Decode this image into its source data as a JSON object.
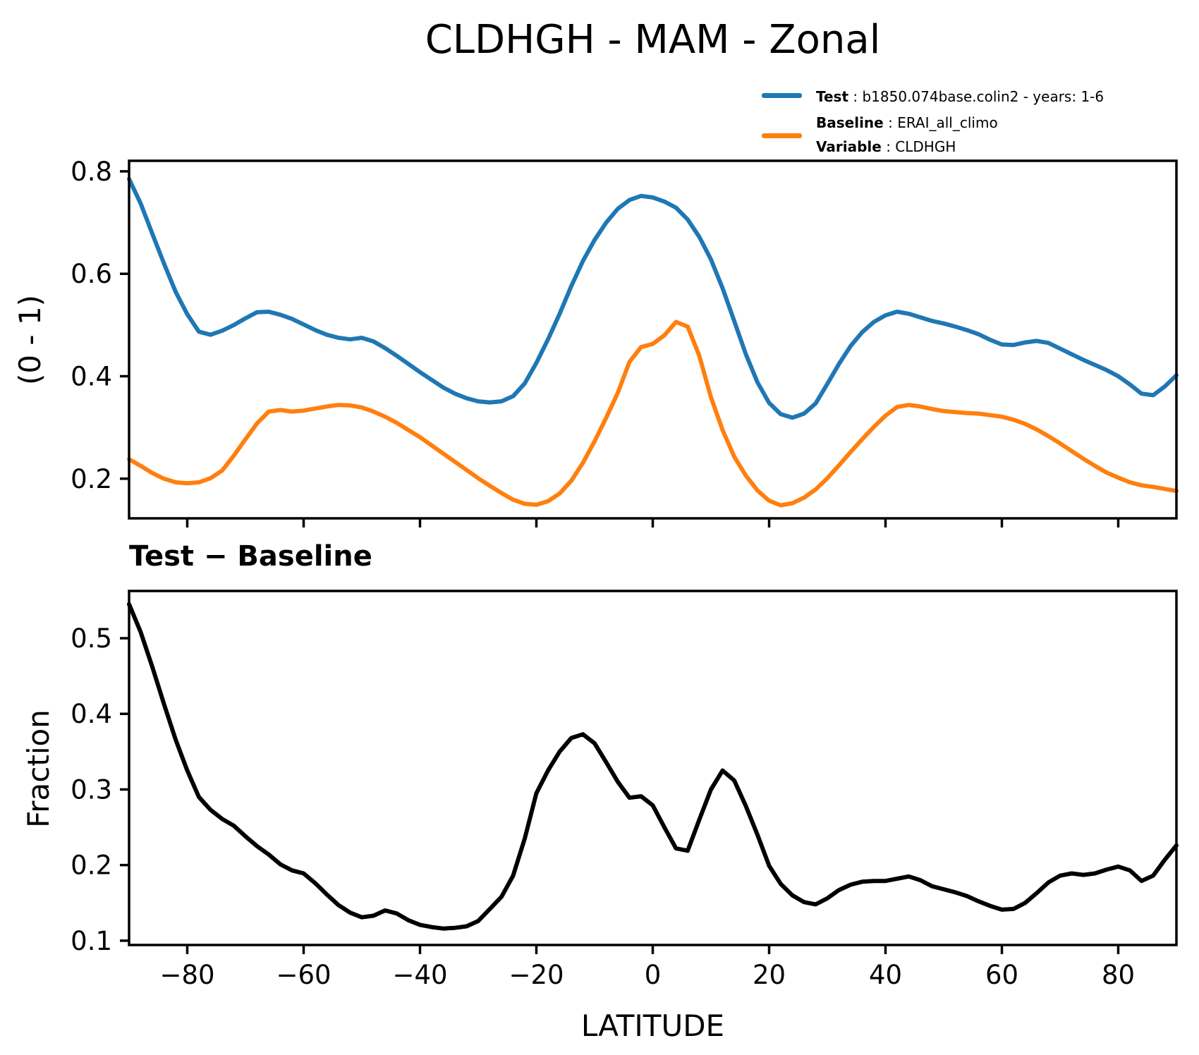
{
  "title": "CLDHGH - MAM - Zonal",
  "subtitle": "Test − Baseline",
  "legend": {
    "test_label": "Test",
    "test_value": " : b1850.074base.colin2 - years: 1-6",
    "baseline_label": "Baseline",
    "baseline_value": " : ERAI_all_climo",
    "variable_label": "Variable",
    "variable_value": " : CLDHGH",
    "test_color": "#1f77b4",
    "baseline_color": "#ff7f0e"
  },
  "chart_data": [
    {
      "type": "line",
      "title": "CLDHGH - MAM - Zonal",
      "xlabel": "",
      "ylabel": "(0 - 1)",
      "xlim": [
        -90,
        90
      ],
      "ylim": [
        0.1226,
        0.8206
      ],
      "grid": false,
      "legend_position": "upper right outside",
      "xticks": [
        -80,
        -60,
        -40,
        -20,
        0,
        20,
        40,
        60,
        80
      ],
      "xtick_labels": [],
      "yticks": [
        0.2,
        0.4,
        0.6,
        0.8
      ],
      "ytick_labels": [
        "0.2",
        "0.4",
        "0.6",
        "0.8"
      ],
      "x": [
        -90,
        -88,
        -86,
        -84,
        -82,
        -80,
        -78,
        -76,
        -74,
        -72,
        -70,
        -68,
        -66,
        -64,
        -62,
        -60,
        -58,
        -56,
        -54,
        -52,
        -50,
        -48,
        -46,
        -44,
        -42,
        -40,
        -38,
        -36,
        -34,
        -32,
        -30,
        -28,
        -26,
        -24,
        -22,
        -20,
        -18,
        -16,
        -14,
        -12,
        -10,
        -8,
        -6,
        -4,
        -2,
        0,
        2,
        4,
        6,
        8,
        10,
        12,
        14,
        16,
        18,
        20,
        22,
        24,
        26,
        28,
        30,
        32,
        34,
        36,
        38,
        40,
        42,
        44,
        46,
        48,
        50,
        52,
        54,
        56,
        58,
        60,
        62,
        64,
        66,
        68,
        70,
        72,
        74,
        76,
        78,
        80,
        82,
        84,
        86,
        88,
        90
      ],
      "series": [
        {
          "name": "Test",
          "color": "#1f77b4",
          "values": [
            0.785,
            0.737,
            0.678,
            0.62,
            0.565,
            0.521,
            0.487,
            0.481,
            0.489,
            0.5,
            0.513,
            0.525,
            0.526,
            0.52,
            0.512,
            0.501,
            0.49,
            0.481,
            0.475,
            0.472,
            0.475,
            0.468,
            0.455,
            0.44,
            0.424,
            0.408,
            0.393,
            0.378,
            0.366,
            0.357,
            0.351,
            0.349,
            0.351,
            0.361,
            0.386,
            0.426,
            0.472,
            0.522,
            0.576,
            0.625,
            0.666,
            0.7,
            0.727,
            0.744,
            0.752,
            0.749,
            0.741,
            0.729,
            0.706,
            0.672,
            0.628,
            0.572,
            0.508,
            0.443,
            0.388,
            0.348,
            0.326,
            0.319,
            0.327,
            0.347,
            0.385,
            0.424,
            0.459,
            0.486,
            0.506,
            0.519,
            0.526,
            0.522,
            0.515,
            0.508,
            0.503,
            0.497,
            0.49,
            0.482,
            0.471,
            0.462,
            0.461,
            0.466,
            0.469,
            0.465,
            0.454,
            0.443,
            0.432,
            0.422,
            0.412,
            0.4,
            0.384,
            0.366,
            0.363,
            0.38,
            0.402
          ]
        },
        {
          "name": "Baseline",
          "color": "#ff7f0e",
          "values": [
            0.238,
            0.225,
            0.211,
            0.2,
            0.193,
            0.191,
            0.193,
            0.201,
            0.216,
            0.245,
            0.277,
            0.308,
            0.331,
            0.334,
            0.331,
            0.333,
            0.337,
            0.341,
            0.344,
            0.343,
            0.339,
            0.331,
            0.321,
            0.309,
            0.295,
            0.281,
            0.265,
            0.249,
            0.233,
            0.217,
            0.201,
            0.186,
            0.172,
            0.159,
            0.151,
            0.149,
            0.156,
            0.171,
            0.196,
            0.231,
            0.273,
            0.319,
            0.368,
            0.428,
            0.457,
            0.463,
            0.48,
            0.506,
            0.497,
            0.44,
            0.359,
            0.295,
            0.243,
            0.206,
            0.177,
            0.157,
            0.148,
            0.152,
            0.163,
            0.179,
            0.201,
            0.226,
            0.252,
            0.277,
            0.301,
            0.323,
            0.34,
            0.344,
            0.341,
            0.336,
            0.332,
            0.33,
            0.328,
            0.327,
            0.324,
            0.321,
            0.315,
            0.307,
            0.296,
            0.283,
            0.269,
            0.254,
            0.239,
            0.225,
            0.212,
            0.202,
            0.193,
            0.187,
            0.184,
            0.18,
            0.176
          ]
        }
      ]
    },
    {
      "type": "line",
      "title": "Test − Baseline",
      "xlabel": "LATITUDE",
      "ylabel": "Fraction",
      "xlim": [
        -90,
        90
      ],
      "ylim": [
        0.0943,
        0.5625
      ],
      "grid": false,
      "xticks": [
        -80,
        -60,
        -40,
        -20,
        0,
        20,
        40,
        60,
        80
      ],
      "xtick_labels": [
        "−80",
        "−60",
        "−40",
        "−20",
        "0",
        "20",
        "40",
        "60",
        "80"
      ],
      "yticks": [
        0.1,
        0.2,
        0.3,
        0.4,
        0.5
      ],
      "ytick_labels": [
        "0.1",
        "0.2",
        "0.3",
        "0.4",
        "0.5"
      ],
      "x": [
        -90,
        -88,
        -86,
        -84,
        -82,
        -80,
        -78,
        -76,
        -74,
        -72,
        -70,
        -68,
        -66,
        -64,
        -62,
        -60,
        -58,
        -56,
        -54,
        -52,
        -50,
        -48,
        -46,
        -44,
        -42,
        -40,
        -38,
        -36,
        -34,
        -32,
        -30,
        -28,
        -26,
        -24,
        -22,
        -20,
        -18,
        -16,
        -14,
        -12,
        -10,
        -8,
        -6,
        -4,
        -2,
        0,
        2,
        4,
        6,
        8,
        10,
        12,
        14,
        16,
        18,
        20,
        22,
        24,
        26,
        28,
        30,
        32,
        34,
        36,
        38,
        40,
        42,
        44,
        46,
        48,
        50,
        52,
        54,
        56,
        58,
        60,
        62,
        64,
        66,
        68,
        70,
        72,
        74,
        76,
        78,
        80,
        82,
        84,
        86,
        88,
        90
      ],
      "series": [
        {
          "name": "Test - Baseline",
          "color": "#000000",
          "values": [
            0.545,
            0.508,
            0.462,
            0.413,
            0.366,
            0.325,
            0.29,
            0.273,
            0.261,
            0.252,
            0.238,
            0.225,
            0.214,
            0.201,
            0.193,
            0.189,
            0.176,
            0.161,
            0.147,
            0.137,
            0.131,
            0.133,
            0.14,
            0.136,
            0.127,
            0.121,
            0.118,
            0.116,
            0.117,
            0.119,
            0.126,
            0.142,
            0.158,
            0.186,
            0.235,
            0.295,
            0.325,
            0.35,
            0.368,
            0.373,
            0.361,
            0.336,
            0.31,
            0.289,
            0.291,
            0.279,
            0.25,
            0.222,
            0.219,
            0.26,
            0.3,
            0.325,
            0.312,
            0.278,
            0.24,
            0.199,
            0.175,
            0.16,
            0.151,
            0.148,
            0.156,
            0.167,
            0.174,
            0.178,
            0.179,
            0.179,
            0.182,
            0.185,
            0.18,
            0.172,
            0.168,
            0.164,
            0.159,
            0.152,
            0.146,
            0.141,
            0.142,
            0.15,
            0.163,
            0.177,
            0.186,
            0.189,
            0.187,
            0.189,
            0.194,
            0.198,
            0.193,
            0.179,
            0.186,
            0.207,
            0.226
          ]
        }
      ]
    }
  ]
}
